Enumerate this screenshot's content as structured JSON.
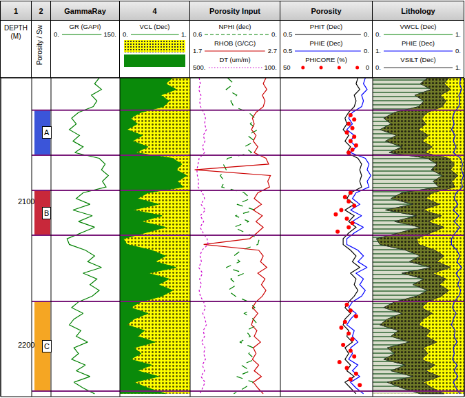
{
  "chart_data": {
    "type": "well_log",
    "ylim": [
      2014,
      2236
    ],
    "yticks": [
      2100,
      2200
    ],
    "depth": [
      2014,
      2018,
      2022,
      2026,
      2030,
      2034,
      2038,
      2042,
      2046,
      2050,
      2054,
      2058,
      2062,
      2066,
      2070,
      2074,
      2078,
      2082,
      2086,
      2090,
      2094,
      2098,
      2102,
      2106,
      2110,
      2114,
      2118,
      2122,
      2126,
      2130,
      2134,
      2138,
      2142,
      2146,
      2150,
      2154,
      2158,
      2162,
      2166,
      2170,
      2174,
      2178,
      2182,
      2186,
      2190,
      2194,
      2198,
      2202,
      2206,
      2210,
      2214,
      2218,
      2222,
      2226,
      2230,
      2234
    ],
    "tracks": [
      {
        "title": "1",
        "label": "DEPTH (M)"
      },
      {
        "title": "2",
        "label": "Porosity / Sw",
        "zones": [
          {
            "name": "A",
            "top": 2036.5,
            "base": 2067.8,
            "color": "#3b55d9"
          },
          {
            "name": "B",
            "top": 2092.3,
            "base": 2123.6,
            "color": "#c8283a"
          },
          {
            "name": "C",
            "top": 2169.7,
            "base": 2232.2,
            "color": "#f5a623"
          }
        ]
      },
      {
        "title": "GammaRay",
        "curves": [
          {
            "name": "GR (GAPI)",
            "type": "line",
            "color": "#008000",
            "line_style": "solid",
            "xlim": [
              0,
              150
            ],
            "xticks": [
              {
                "value": 0,
                "label": "0."
              },
              {
                "value": 150,
                "label": "150."
              }
            ],
            "values": [
              105,
              95,
              110,
              88,
              100,
              92,
              60,
              45,
              55,
              40,
              62,
              48,
              70,
              52,
              105,
              118,
              110,
              125,
              112,
              120,
              70,
              55,
              85,
              48,
              90,
              60,
              95,
              65,
              35,
              40,
              75,
              95,
              80,
              110,
              70,
              100,
              85,
              105,
              90,
              60,
              45,
              70,
              50,
              40,
              65,
              55,
              80,
              50,
              60,
              45,
              75,
              55,
              85,
              50,
              70,
              95
            ]
          }
        ]
      },
      {
        "title": "4",
        "curves": [
          {
            "name": "VCL (Dec)",
            "type": "area",
            "color": "#0a8a0a",
            "line_style": "solid",
            "xlim": [
              0,
              1
            ],
            "xticks": [
              {
                "value": 0,
                "label": "0."
              },
              {
                "value": 1,
                "label": "1."
              }
            ],
            "values": [
              0.75,
              0.65,
              0.8,
              0.58,
              0.7,
              0.62,
              0.3,
              0.15,
              0.25,
              0.1,
              0.32,
              0.18,
              0.4,
              0.22,
              0.75,
              0.88,
              0.8,
              0.95,
              0.82,
              0.9,
              0.4,
              0.25,
              0.55,
              0.18,
              0.6,
              0.3,
              0.65,
              0.35,
              0.05,
              0.1,
              0.45,
              0.65,
              0.5,
              0.8,
              0.4,
              0.7,
              0.55,
              0.75,
              0.6,
              0.3,
              0.15,
              0.4,
              0.2,
              0.1,
              0.35,
              0.25,
              0.5,
              0.2,
              0.3,
              0.15,
              0.45,
              0.25,
              0.55,
              0.2,
              0.4,
              0.65
            ]
          }
        ]
      },
      {
        "title": "Porosity Input",
        "curves": [
          {
            "name": "NPHI (dec)",
            "type": "line",
            "color": "#008000",
            "line_style": "dashed",
            "xlim": [
              0.6,
              0
            ],
            "xticks": [
              0.6,
              {
                "value": 0,
                "label": "0."
              }
            ],
            "values": [
              0.35,
              0.31,
              0.36,
              0.29,
              0.33,
              0.31,
              0.21,
              0.17,
              0.2,
              0.15,
              0.22,
              0.17,
              0.24,
              0.19,
              0.35,
              0.38,
              0.36,
              0.4,
              0.37,
              0.39,
              0.24,
              0.2,
              0.29,
              0.17,
              0.3,
              0.21,
              0.31,
              0.23,
              0.14,
              0.15,
              0.26,
              0.31,
              0.27,
              0.36,
              0.24,
              0.33,
              0.29,
              0.35,
              0.3,
              0.21,
              0.17,
              0.24,
              0.18,
              0.15,
              0.23,
              0.2,
              0.27,
              0.18,
              0.21,
              0.17,
              0.26,
              0.2,
              0.29,
              0.18,
              0.24,
              0.31
            ]
          },
          {
            "name": "RHOB (G/CC)",
            "type": "line",
            "color": "#cc0000",
            "line_style": "solid",
            "xlim": [
              1.7,
              2.7
            ],
            "xticks": [
              1.7,
              2.7
            ],
            "values": [
              2.54,
              2.51,
              2.55,
              2.5,
              2.53,
              2.51,
              2.43,
              2.39,
              2.41,
              2.38,
              2.43,
              2.4,
              2.45,
              2.41,
              2.54,
              2.57,
              1.75,
              2.59,
              2.56,
              2.58,
              2.45,
              2.41,
              2.49,
              2.4,
              2.5,
              2.43,
              2.51,
              2.44,
              2.36,
              1.85,
              2.46,
              2.51,
              2.48,
              2.55,
              2.45,
              2.53,
              2.49,
              2.54,
              2.5,
              2.43,
              2.39,
              2.45,
              2.4,
              2.38,
              2.44,
              2.41,
              2.48,
              2.4,
              2.43,
              2.39,
              2.46,
              2.41,
              2.49,
              2.4,
              2.45,
              2.51
            ]
          },
          {
            "name": "DT (um/m)",
            "type": "line",
            "color": "#cc00cc",
            "line_style": "dotted",
            "xlim": [
              500,
              100
            ],
            "xticks": [
              {
                "value": 500,
                "label": "500."
              },
              {
                "value": 100,
                "label": "100."
              }
            ],
            "values": [
              460,
              455,
              462,
              452,
              458,
              454,
              440,
              432,
              436,
              428,
              442,
              434,
              446,
              436,
              460,
              466,
              470,
              468,
              462,
              465,
              445,
              436,
              452,
              432,
              455,
              440,
              456,
              442,
              425,
              420,
              448,
              456,
              450,
              462,
              445,
              458,
              450,
              460,
              455,
              440,
              432,
              444,
              434,
              428,
              442,
              436,
              450,
              434,
              440,
              432,
              446,
              436,
              452,
              434,
              444,
              456
            ]
          }
        ]
      },
      {
        "title": "Porosity",
        "curves": [
          {
            "name": "PHIT (Dec)",
            "type": "line",
            "color": "#000000",
            "line_style": "solid",
            "xlim": [
              0.5,
              0
            ],
            "xticks": [
              0.5,
              {
                "value": 0,
                "label": "0."
              }
            ],
            "values": [
              0.08,
              0.09,
              0.07,
              0.1,
              0.09,
              0.1,
              0.13,
              0.15,
              0.14,
              0.16,
              0.13,
              0.15,
              0.12,
              0.14,
              0.08,
              0.06,
              0.07,
              0.06,
              0.07,
              0.06,
              0.12,
              0.14,
              0.1,
              0.15,
              0.1,
              0.13,
              0.09,
              0.13,
              0.16,
              0.16,
              0.12,
              0.09,
              0.11,
              0.07,
              0.12,
              0.09,
              0.1,
              0.08,
              0.1,
              0.13,
              0.15,
              0.12,
              0.15,
              0.16,
              0.13,
              0.14,
              0.11,
              0.15,
              0.13,
              0.15,
              0.12,
              0.14,
              0.1,
              0.15,
              0.12,
              0.09
            ]
          },
          {
            "name": "PHIE (Dec)",
            "type": "line",
            "color": "#0000ff",
            "line_style": "solid",
            "xlim": [
              0.5,
              0
            ],
            "xticks": [
              0.5,
              {
                "value": 0,
                "label": "0."
              }
            ],
            "values": [
              0.04,
              0.05,
              0.03,
              0.06,
              0.05,
              0.06,
              0.11,
              0.13,
              0.11,
              0.14,
              0.1,
              0.12,
              0.09,
              0.12,
              0.04,
              0.02,
              0.03,
              0.01,
              0.03,
              0.02,
              0.09,
              0.11,
              0.07,
              0.12,
              0.06,
              0.11,
              0.05,
              0.1,
              0.14,
              0.14,
              0.08,
              0.05,
              0.08,
              0.03,
              0.09,
              0.05,
              0.07,
              0.04,
              0.06,
              0.11,
              0.13,
              0.09,
              0.12,
              0.14,
              0.1,
              0.11,
              0.08,
              0.12,
              0.11,
              0.13,
              0.08,
              0.11,
              0.07,
              0.12,
              0.09,
              0.05
            ]
          },
          {
            "name": "PHICORE (%)",
            "type": "scatter",
            "marker": "circle",
            "color": "#ff0000",
            "xlim": [
              50,
              0
            ],
            "xticks": [
              50,
              0
            ],
            "depth": [
              2040,
              2043,
              2046,
              2049,
              2052,
              2055,
              2058,
              2061,
              2064,
              2066,
              2094,
              2097,
              2100,
              2103,
              2106,
              2109,
              2112,
              2115,
              2118,
              2121,
              2172,
              2176,
              2180,
              2184,
              2188,
              2192,
              2196,
              2200,
              2204,
              2208,
              2212,
              2216,
              2220,
              2224,
              2228
            ],
            "values": [
              12,
              10,
              13,
              11,
              14,
              10,
              12,
              9,
              11,
              13,
              12,
              15,
              13,
              10,
              17,
              20,
              14,
              11,
              13,
              19,
              14,
              12,
              9,
              15,
              17,
              13,
              11,
              16,
              12,
              10,
              18,
              14,
              9,
              12,
              7
            ]
          }
        ]
      },
      {
        "title": "Lithology",
        "stacked": true,
        "curves": [
          {
            "name": "VWCL (Dec)",
            "type": "area",
            "color": "#008000",
            "line_style": "solid",
            "xlim": [
              0,
              1
            ],
            "xticks": [
              {
                "value": 0,
                "label": "0."
              },
              {
                "value": 1,
                "label": "1."
              }
            ],
            "values": [
              0.6,
              0.52,
              0.64,
              0.46,
              0.56,
              0.5,
              0.24,
              0.12,
              0.2,
              0.08,
              0.26,
              0.14,
              0.32,
              0.18,
              0.6,
              0.7,
              0.64,
              0.76,
              0.66,
              0.72,
              0.32,
              0.2,
              0.44,
              0.14,
              0.48,
              0.24,
              0.52,
              0.28,
              0.04,
              0.08,
              0.36,
              0.52,
              0.4,
              0.64,
              0.32,
              0.56,
              0.44,
              0.6,
              0.48,
              0.24,
              0.12,
              0.32,
              0.16,
              0.08,
              0.28,
              0.2,
              0.4,
              0.16,
              0.24,
              0.12,
              0.36,
              0.2,
              0.44,
              0.16,
              0.32,
              0.52
            ]
          },
          {
            "name": "PHIE (Dec)",
            "type": "line",
            "color": "#0000ff",
            "line_style": "solid",
            "xlim": [
              1,
              0
            ],
            "xticks": [
              {
                "value": 1,
                "label": "1."
              },
              {
                "value": 0,
                "label": "0."
              }
            ],
            "values": [
              0.04,
              0.05,
              0.03,
              0.06,
              0.05,
              0.06,
              0.11,
              0.13,
              0.11,
              0.14,
              0.1,
              0.12,
              0.09,
              0.12,
              0.04,
              0.02,
              0.03,
              0.01,
              0.03,
              0.02,
              0.09,
              0.11,
              0.07,
              0.12,
              0.06,
              0.11,
              0.05,
              0.1,
              0.14,
              0.14,
              0.08,
              0.05,
              0.08,
              0.03,
              0.09,
              0.05,
              0.07,
              0.04,
              0.06,
              0.11,
              0.13,
              0.09,
              0.12,
              0.14,
              0.1,
              0.11,
              0.08,
              0.12,
              0.11,
              0.13,
              0.08,
              0.11,
              0.07,
              0.12,
              0.09,
              0.05
            ]
          },
          {
            "name": "VSILT (Dec)",
            "type": "area",
            "color": "#333333",
            "line_style": "solid",
            "xlim": [
              0,
              1
            ],
            "xticks": [
              {
                "value": 0,
                "label": "0."
              },
              {
                "value": 1,
                "label": "1."
              }
            ],
            "values": [
              0.23,
              0.26,
              0.21,
              0.28,
              0.24,
              0.26,
              0.36,
              0.41,
              0.38,
              0.42,
              0.35,
              0.4,
              0.33,
              0.38,
              0.23,
              0.19,
              0.21,
              0.17,
              0.2,
              0.18,
              0.33,
              0.38,
              0.29,
              0.4,
              0.27,
              0.36,
              0.26,
              0.35,
              0.44,
              0.42,
              0.32,
              0.26,
              0.3,
              0.21,
              0.33,
              0.24,
              0.29,
              0.23,
              0.27,
              0.36,
              0.41,
              0.33,
              0.39,
              0.42,
              0.35,
              0.38,
              0.3,
              0.39,
              0.36,
              0.41,
              0.32,
              0.38,
              0.29,
              0.39,
              0.33,
              0.26
            ]
          }
        ]
      }
    ]
  }
}
